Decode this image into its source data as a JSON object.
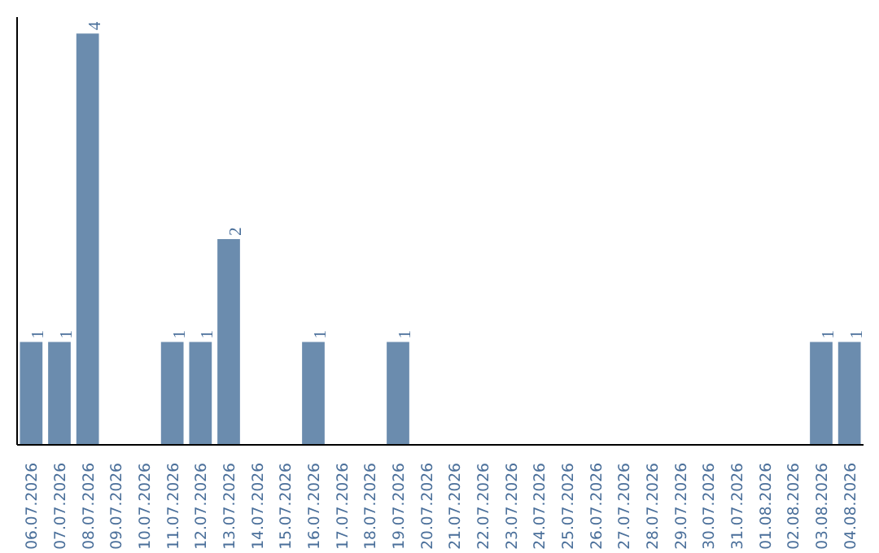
{
  "chart_data": {
    "type": "bar",
    "categories": [
      "06.07.2026",
      "07.07.2026",
      "08.07.2026",
      "09.07.2026",
      "10.07.2026",
      "11.07.2026",
      "12.07.2026",
      "13.07.2026",
      "14.07.2026",
      "15.07.2026",
      "16.07.2026",
      "17.07.2026",
      "18.07.2026",
      "19.07.2026",
      "20.07.2026",
      "21.07.2026",
      "22.07.2026",
      "23.07.2026",
      "24.07.2026",
      "25.07.2026",
      "26.07.2026",
      "27.07.2026",
      "28.07.2026",
      "29.07.2026",
      "30.07.2026",
      "31.07.2026",
      "01.08.2026",
      "02.08.2026",
      "03.08.2026",
      "04.08.2026"
    ],
    "values": [
      1,
      1,
      4,
      0,
      0,
      1,
      1,
      2,
      0,
      0,
      1,
      0,
      0,
      1,
      0,
      0,
      0,
      0,
      0,
      0,
      0,
      0,
      0,
      0,
      0,
      0,
      0,
      0,
      1,
      1
    ],
    "value_labels": [
      "1",
      "1",
      "4",
      null,
      null,
      "1",
      "1",
      "2",
      null,
      null,
      "1",
      null,
      null,
      "1",
      null,
      null,
      null,
      null,
      null,
      null,
      null,
      null,
      null,
      null,
      null,
      null,
      null,
      null,
      "1",
      "1"
    ],
    "color": "#6b8cae",
    "tick_labels": "x"
  }
}
